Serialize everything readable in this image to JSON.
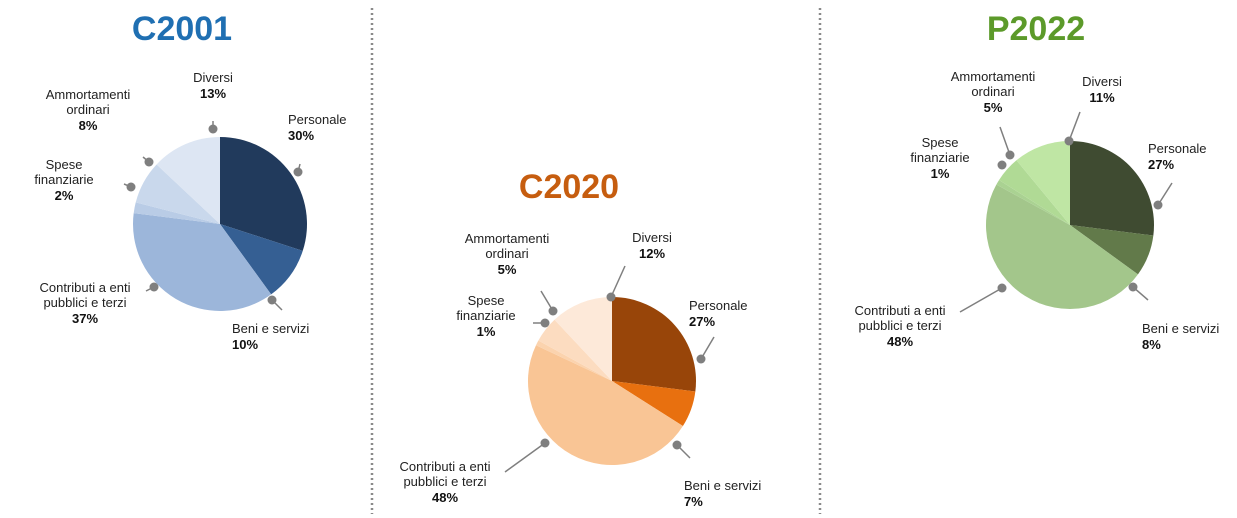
{
  "chart_data": [
    {
      "type": "pie",
      "title": "C2001",
      "title_color": "#1f6fb2",
      "slices": [
        {
          "label_lines": [
            "Personale"
          ],
          "value_label": "30%",
          "value": 30,
          "color": "#213a5c"
        },
        {
          "label_lines": [
            "Beni e servizi"
          ],
          "value_label": "10%",
          "value": 10,
          "color": "#355f93"
        },
        {
          "label_lines": [
            "Contributi a enti",
            "pubblici e terzi"
          ],
          "value_label": "37%",
          "value": 37,
          "color": "#9cb6da"
        },
        {
          "label_lines": [
            "Spese",
            "finanziarie"
          ],
          "value_label": "2%",
          "value": 2,
          "color": "#b9cce6"
        },
        {
          "label_lines": [
            "Ammortamenti",
            "ordinari"
          ],
          "value_label": "8%",
          "value": 8,
          "color": "#c9d8ec"
        },
        {
          "label_lines": [
            "Diversi"
          ],
          "value_label": "13%",
          "value": 13,
          "color": "#dde6f3"
        }
      ]
    },
    {
      "type": "pie",
      "title": "C2020",
      "title_color": "#c65d0f",
      "slices": [
        {
          "label_lines": [
            "Personale"
          ],
          "value_label": "27%",
          "value": 27,
          "color": "#984509"
        },
        {
          "label_lines": [
            "Beni e servizi"
          ],
          "value_label": "7%",
          "value": 7,
          "color": "#e8700f"
        },
        {
          "label_lines": [
            "Contributi a enti",
            "pubblici e terzi"
          ],
          "value_label": "48%",
          "value": 48,
          "color": "#f9c595"
        },
        {
          "label_lines": [
            "Spese",
            "finanziarie"
          ],
          "value_label": "1%",
          "value": 1,
          "color": "#fbd3ae"
        },
        {
          "label_lines": [
            "Ammortamenti",
            "ordinari"
          ],
          "value_label": "5%",
          "value": 5,
          "color": "#fcdcc0"
        },
        {
          "label_lines": [
            "Diversi"
          ],
          "value_label": "12%",
          "value": 12,
          "color": "#fde9d9"
        }
      ]
    },
    {
      "type": "pie",
      "title": "P2022",
      "title_color": "#5c9a2a",
      "slices": [
        {
          "label_lines": [
            "Personale"
          ],
          "value_label": "27%",
          "value": 27,
          "color": "#3f4b31"
        },
        {
          "label_lines": [
            "Beni e servizi"
          ],
          "value_label": "8%",
          "value": 8,
          "color": "#627a4a"
        },
        {
          "label_lines": [
            "Contributi a enti",
            "pubblici e terzi"
          ],
          "value_label": "48%",
          "value": 48,
          "color": "#a3c68b"
        },
        {
          "label_lines": [
            "Spese",
            "finanziarie"
          ],
          "value_label": "1%",
          "value": 1,
          "color": "#aad292"
        },
        {
          "label_lines": [
            "Ammortamenti",
            "ordinari"
          ],
          "value_label": "5%",
          "value": 5,
          "color": "#b0da95"
        },
        {
          "label_lines": [
            "Diversi"
          ],
          "value_label": "11%",
          "value": 11,
          "color": "#bfe6a4"
        }
      ]
    }
  ]
}
